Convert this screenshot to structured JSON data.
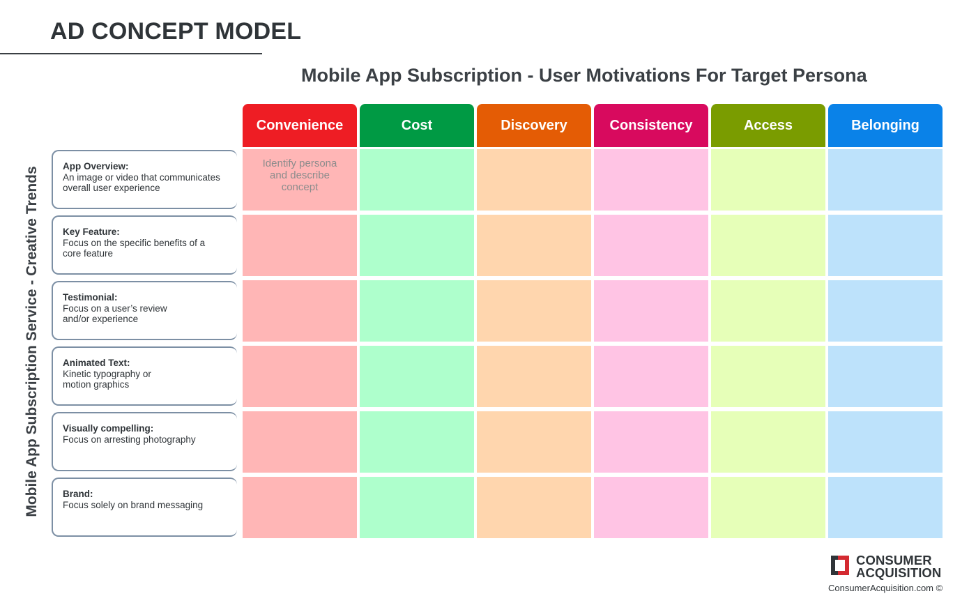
{
  "page": {
    "title": "AD CONCEPT MODEL",
    "matrix_title": "Mobile App Subscription - User Motivations For Target Persona",
    "row_axis_label": "Mobile App Subscription Service - Creative Trends"
  },
  "columns": [
    {
      "label": "Convenience",
      "color": "#ee1d24",
      "cell_color": "#ffb6b6"
    },
    {
      "label": "Cost",
      "color": "#009a44",
      "cell_color": "#aeffcc"
    },
    {
      "label": "Discovery",
      "color": "#e45c05",
      "cell_color": "#ffd6ae"
    },
    {
      "label": "Consistency",
      "color": "#d80a5e",
      "cell_color": "#ffc4e4"
    },
    {
      "label": "Access",
      "color": "#7a9c00",
      "cell_color": "#e6ffb8"
    },
    {
      "label": "Belonging",
      "color": "#0a82e8",
      "cell_color": "#bde2fb"
    }
  ],
  "rows": [
    {
      "title": "App Overview:",
      "description": "An image or video that communicates\noverall user experience"
    },
    {
      "title": "Key Feature:",
      "description": "Focus on the specific benefits of a\ncore feature"
    },
    {
      "title": "Testimonial:",
      "description": "Focus on a user’s review\nand/or experience"
    },
    {
      "title": "Animated Text:",
      "description": "Kinetic typography or\nmotion graphics"
    },
    {
      "title": "Visually compelling:",
      "description": "Focus on arresting photography"
    },
    {
      "title": "Brand:",
      "description": "Focus solely on brand messaging"
    }
  ],
  "cells": {
    "example_text": "Identify persona\nand describe\nconcept"
  },
  "logo": {
    "line1": "CONSUMER",
    "line2": "ACQUISITION",
    "url": "ConsumerAcquisition.com ©",
    "mark_color": "#d42a31",
    "mark_dark": "#2f3438"
  }
}
